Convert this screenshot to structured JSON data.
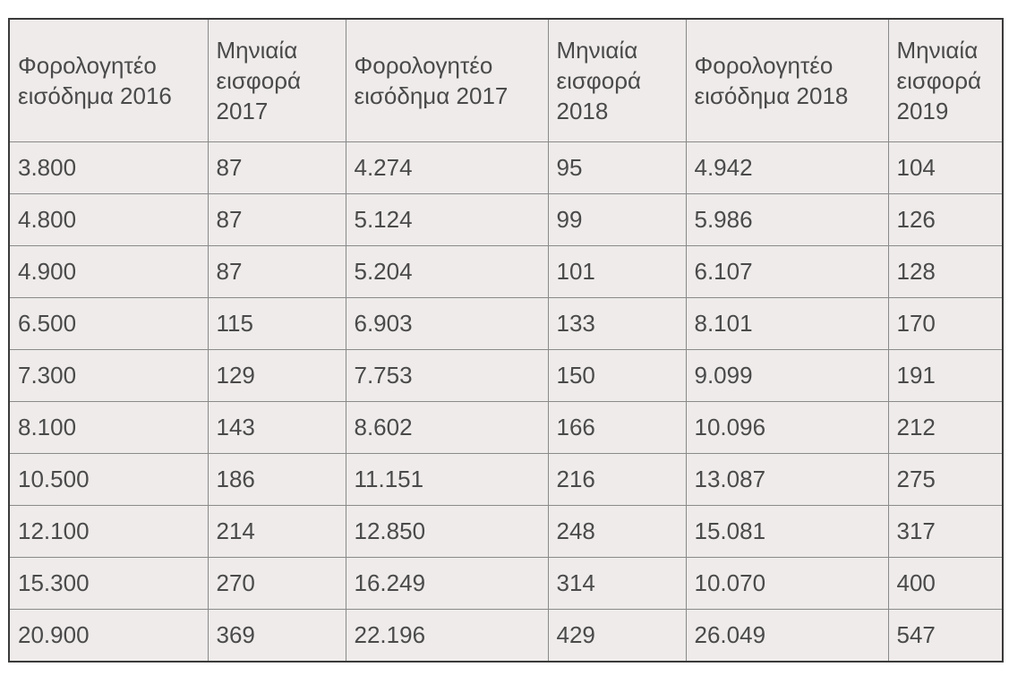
{
  "table": {
    "headers": [
      "Φορολογητέο εισόδημα 2016",
      "Μηνιαία εισφορά 2017",
      "Φορολογητέο εισόδημα 2017",
      "Μηνιαία εισφορά 2018",
      "Φορολογητέο εισόδημα 2018",
      "Μηνιαία εισφορά 2019"
    ],
    "rows": [
      [
        "3.800",
        "87",
        "4.274",
        "95",
        "4.942",
        "104"
      ],
      [
        "4.800",
        "87",
        "5.124",
        "99",
        "5.986",
        "126"
      ],
      [
        "4.900",
        "87",
        "5.204",
        "101",
        "6.107",
        "128"
      ],
      [
        "6.500",
        "115",
        "6.903",
        "133",
        "8.101",
        "170"
      ],
      [
        "7.300",
        "129",
        "7.753",
        "150",
        "9.099",
        "191"
      ],
      [
        "8.100",
        "143",
        "8.602",
        "166",
        "10.096",
        "212"
      ],
      [
        "10.500",
        "186",
        "11.151",
        "216",
        "13.087",
        "275"
      ],
      [
        "12.100",
        "214",
        "12.850",
        "248",
        "15.081",
        "317"
      ],
      [
        "15.300",
        "270",
        "16.249",
        "314",
        "10.070",
        "400"
      ],
      [
        "20.900",
        "369",
        "22.196",
        "429",
        "26.049",
        "547"
      ]
    ]
  }
}
